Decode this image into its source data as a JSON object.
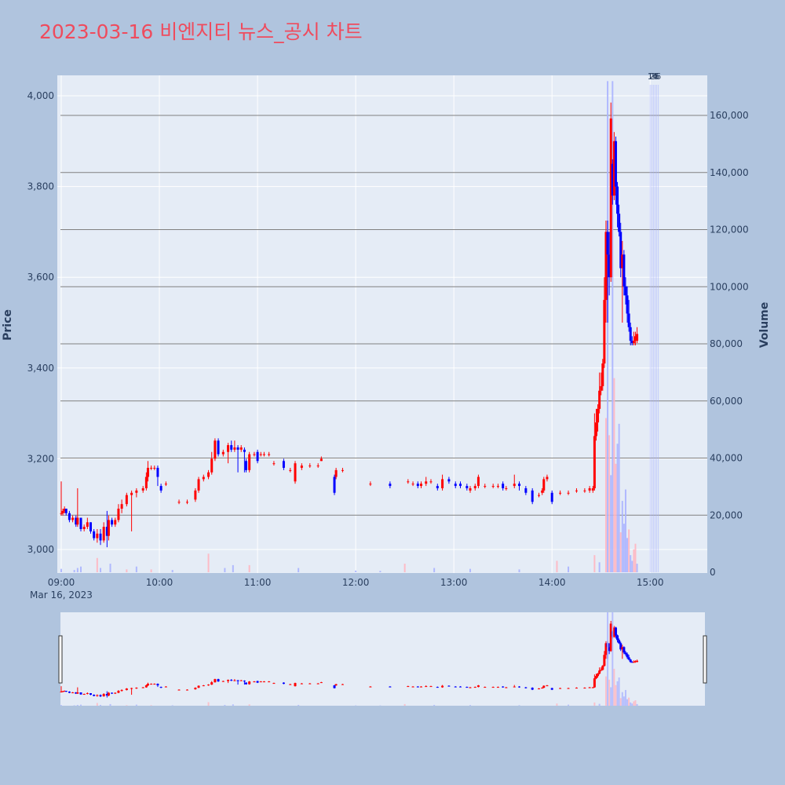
{
  "title": "2023-03-16 비엔지티 뉴스_공시 차트",
  "chart_data": {
    "type": "candlestick",
    "x_tick_labels": [
      "09:00",
      "10:00",
      "11:00",
      "12:00",
      "13:00",
      "14:00",
      "15:00"
    ],
    "x_date_label": "Mar 16, 2023",
    "x_range_minutes": [
      0,
      393
    ],
    "y_price": {
      "label": "Price",
      "range": [
        2950,
        4045
      ],
      "ticks": [
        3000,
        3200,
        3400,
        3600,
        3800,
        4000
      ],
      "tick_labels": [
        "3,000",
        "3,200",
        "3,400",
        "3,600",
        "3,800",
        "4,000"
      ]
    },
    "y_volume": {
      "label": "Volume",
      "range": [
        0,
        172000
      ],
      "ticks": [
        0,
        20000,
        40000,
        60000,
        80000,
        100000,
        120000,
        140000,
        160000
      ],
      "tick_labels": [
        "0",
        "20,000",
        "40,000",
        "60,000",
        "80,000",
        "100,000",
        "120,000",
        "140,000",
        "160,000"
      ]
    },
    "annotations": [
      "1",
      "2",
      "3",
      "4",
      "5",
      "6"
    ],
    "annotation_minutes": [
      360,
      361,
      362,
      363,
      364,
      365
    ],
    "colors": {
      "up": "#ff0000",
      "down": "#0000ff",
      "up_volume": "#ffb6c1",
      "down_volume": "#aab4ff"
    },
    "candles": [
      [
        0,
        3080,
        3150,
        3075,
        3080
      ],
      [
        1,
        3080,
        3090,
        3075,
        3085
      ],
      [
        2,
        3085,
        3095,
        3080,
        3090
      ],
      [
        3,
        3090,
        3090,
        3075,
        3080
      ],
      [
        5,
        3080,
        3085,
        3060,
        3065
      ],
      [
        7,
        3065,
        3075,
        3060,
        3070
      ],
      [
        9,
        3070,
        3075,
        3050,
        3055
      ],
      [
        10,
        3055,
        3135,
        3050,
        3070
      ],
      [
        12,
        3070,
        3070,
        3040,
        3045
      ],
      [
        14,
        3045,
        3055,
        3040,
        3050
      ],
      [
        16,
        3050,
        3070,
        3045,
        3060
      ],
      [
        18,
        3060,
        3060,
        3035,
        3040
      ],
      [
        20,
        3040,
        3045,
        3020,
        3025
      ],
      [
        22,
        3025,
        3045,
        3015,
        3035
      ],
      [
        24,
        3035,
        3045,
        3010,
        3020
      ],
      [
        26,
        3020,
        3060,
        3015,
        3050
      ],
      [
        28,
        3050,
        3085,
        3005,
        3030
      ],
      [
        29,
        3030,
        3075,
        3020,
        3065
      ],
      [
        31,
        3065,
        3070,
        3050,
        3055
      ],
      [
        33,
        3055,
        3070,
        3050,
        3065
      ],
      [
        35,
        3065,
        3100,
        3060,
        3090
      ],
      [
        37,
        3090,
        3110,
        3080,
        3100
      ],
      [
        40,
        3100,
        3125,
        3095,
        3120
      ],
      [
        43,
        3120,
        3130,
        3040,
        3125
      ],
      [
        46,
        3125,
        3135,
        3115,
        3130
      ],
      [
        50,
        3130,
        3140,
        3125,
        3135
      ],
      [
        52,
        3135,
        3170,
        3130,
        3160
      ],
      [
        53,
        3160,
        3195,
        3150,
        3180
      ],
      [
        55,
        3180,
        3185,
        3175,
        3180
      ],
      [
        57,
        3180,
        3185,
        3175,
        3180
      ],
      [
        59,
        3180,
        3185,
        3140,
        3160
      ],
      [
        61,
        3140,
        3145,
        3125,
        3130
      ],
      [
        64,
        3145,
        3150,
        3140,
        3145
      ],
      [
        72,
        3105,
        3110,
        3100,
        3105
      ],
      [
        77,
        3105,
        3110,
        3100,
        3105
      ],
      [
        82,
        3110,
        3135,
        3105,
        3130
      ],
      [
        84,
        3130,
        3160,
        3125,
        3155
      ],
      [
        87,
        3155,
        3165,
        3150,
        3160
      ],
      [
        90,
        3160,
        3175,
        3155,
        3170
      ],
      [
        92,
        3170,
        3215,
        3165,
        3200
      ],
      [
        94,
        3200,
        3245,
        3195,
        3240
      ],
      [
        96,
        3240,
        3245,
        3205,
        3210
      ],
      [
        99,
        3210,
        3220,
        3205,
        3215
      ],
      [
        102,
        3215,
        3235,
        3190,
        3230
      ],
      [
        104,
        3230,
        3240,
        3215,
        3220
      ],
      [
        106,
        3220,
        3240,
        3215,
        3225
      ],
      [
        108,
        3225,
        3230,
        3170,
        3220
      ],
      [
        110,
        3220,
        3230,
        3215,
        3225
      ],
      [
        112,
        3220,
        3225,
        3170,
        3215
      ],
      [
        113,
        3195,
        3200,
        3170,
        3175
      ],
      [
        115,
        3175,
        3215,
        3170,
        3210
      ],
      [
        118,
        3210,
        3215,
        3205,
        3210
      ],
      [
        120,
        3215,
        3220,
        3190,
        3195
      ],
      [
        122,
        3210,
        3215,
        3205,
        3210
      ],
      [
        124,
        3210,
        3215,
        3205,
        3210
      ],
      [
        127,
        3210,
        3215,
        3205,
        3210
      ],
      [
        130,
        3190,
        3195,
        3185,
        3190
      ],
      [
        136,
        3195,
        3200,
        3175,
        3180
      ],
      [
        140,
        3175,
        3180,
        3170,
        3175
      ],
      [
        143,
        3150,
        3195,
        3145,
        3190
      ],
      [
        147,
        3180,
        3190,
        3175,
        3185
      ],
      [
        152,
        3185,
        3190,
        3180,
        3185
      ],
      [
        157,
        3185,
        3190,
        3180,
        3185
      ],
      [
        159,
        3195,
        3205,
        3195,
        3200
      ],
      [
        167,
        3160,
        3165,
        3120,
        3125
      ],
      [
        168,
        3160,
        3180,
        3155,
        3175
      ],
      [
        172,
        3175,
        3180,
        3170,
        3175
      ],
      [
        189,
        3145,
        3150,
        3140,
        3145
      ],
      [
        201,
        3145,
        3150,
        3135,
        3140
      ],
      [
        212,
        3150,
        3155,
        3145,
        3150
      ],
      [
        215,
        3145,
        3150,
        3140,
        3145
      ],
      [
        218,
        3145,
        3150,
        3135,
        3140
      ],
      [
        220,
        3140,
        3150,
        3135,
        3145
      ],
      [
        223,
        3145,
        3160,
        3140,
        3150
      ],
      [
        226,
        3150,
        3155,
        3145,
        3150
      ],
      [
        230,
        3140,
        3145,
        3130,
        3135
      ],
      [
        233,
        3135,
        3165,
        3130,
        3155
      ],
      [
        237,
        3155,
        3160,
        3145,
        3150
      ],
      [
        241,
        3145,
        3150,
        3135,
        3140
      ],
      [
        244,
        3145,
        3150,
        3135,
        3140
      ],
      [
        248,
        3140,
        3145,
        3130,
        3135
      ],
      [
        250,
        3130,
        3140,
        3125,
        3135
      ],
      [
        253,
        3135,
        3145,
        3130,
        3140
      ],
      [
        255,
        3140,
        3165,
        3135,
        3160
      ],
      [
        259,
        3140,
        3145,
        3135,
        3140
      ],
      [
        264,
        3140,
        3145,
        3135,
        3140
      ],
      [
        267,
        3140,
        3145,
        3135,
        3140
      ],
      [
        270,
        3145,
        3150,
        3130,
        3135
      ],
      [
        272,
        3135,
        3140,
        3130,
        3135
      ],
      [
        277,
        3140,
        3165,
        3135,
        3145
      ],
      [
        280,
        3145,
        3150,
        3130,
        3140
      ],
      [
        284,
        3135,
        3140,
        3120,
        3125
      ],
      [
        288,
        3130,
        3135,
        3100,
        3105
      ],
      [
        292,
        3120,
        3125,
        3115,
        3120
      ],
      [
        294,
        3125,
        3135,
        3120,
        3130
      ],
      [
        295,
        3130,
        3160,
        3125,
        3155
      ],
      [
        297,
        3155,
        3165,
        3150,
        3160
      ],
      [
        300,
        3125,
        3130,
        3100,
        3105
      ],
      [
        305,
        3125,
        3130,
        3120,
        3125
      ],
      [
        310,
        3125,
        3130,
        3120,
        3125
      ],
      [
        315,
        3130,
        3135,
        3125,
        3130
      ],
      [
        320,
        3130,
        3135,
        3125,
        3130
      ],
      [
        323,
        3130,
        3140,
        3125,
        3135
      ],
      [
        325,
        3130,
        3140,
        3125,
        3135
      ],
      [
        326,
        3135,
        3300,
        3130,
        3250
      ],
      [
        327,
        3250,
        3310,
        3240,
        3280
      ],
      [
        328,
        3280,
        3320,
        3260,
        3310
      ],
      [
        329,
        3310,
        3390,
        3300,
        3350
      ],
      [
        330,
        3350,
        3390,
        3340,
        3360
      ],
      [
        331,
        3360,
        3420,
        3350,
        3410
      ],
      [
        332,
        3410,
        3600,
        3400,
        3550
      ],
      [
        333,
        3550,
        3725,
        3500,
        3700
      ],
      [
        334,
        3700,
        3725,
        3500,
        3650
      ],
      [
        335,
        3650,
        3700,
        3560,
        3600
      ],
      [
        336,
        3600,
        3985,
        3590,
        3950
      ],
      [
        337,
        3850,
        3860,
        3760,
        3780
      ],
      [
        338,
        3780,
        3920,
        3770,
        3900
      ],
      [
        339,
        3900,
        3910,
        3760,
        3800
      ],
      [
        340,
        3800,
        3810,
        3710,
        3740
      ],
      [
        341,
        3740,
        3760,
        3690,
        3700
      ],
      [
        342,
        3700,
        3720,
        3600,
        3620
      ],
      [
        343,
        3620,
        3680,
        3500,
        3650
      ],
      [
        344,
        3650,
        3660,
        3560,
        3580
      ],
      [
        345,
        3580,
        3600,
        3540,
        3560
      ],
      [
        346,
        3560,
        3580,
        3500,
        3520
      ],
      [
        347,
        3520,
        3550,
        3480,
        3490
      ],
      [
        348,
        3490,
        3500,
        3450,
        3460
      ],
      [
        349,
        3460,
        3470,
        3450,
        3455
      ],
      [
        350,
        3455,
        3480,
        3450,
        3460
      ],
      [
        351,
        3460,
        3480,
        3450,
        3470
      ],
      [
        352,
        3460,
        3490,
        3455,
        3475
      ]
    ],
    "volumes": [
      [
        0,
        1200,
        "down"
      ],
      [
        8,
        800,
        "down"
      ],
      [
        10,
        1500,
        "down"
      ],
      [
        12,
        2000,
        "down"
      ],
      [
        22,
        5000,
        "up"
      ],
      [
        24,
        1500,
        "down"
      ],
      [
        30,
        3000,
        "down"
      ],
      [
        40,
        1000,
        "up"
      ],
      [
        46,
        2000,
        "down"
      ],
      [
        55,
        1000,
        "up"
      ],
      [
        68,
        800,
        "down"
      ],
      [
        90,
        6500,
        "up"
      ],
      [
        100,
        1500,
        "down"
      ],
      [
        105,
        2500,
        "down"
      ],
      [
        115,
        2500,
        "up"
      ],
      [
        145,
        1500,
        "down"
      ],
      [
        180,
        600,
        "down"
      ],
      [
        195,
        500,
        "down"
      ],
      [
        210,
        3000,
        "up"
      ],
      [
        228,
        1500,
        "down"
      ],
      [
        250,
        1200,
        "down"
      ],
      [
        280,
        1000,
        "down"
      ],
      [
        303,
        4000,
        "up"
      ],
      [
        310,
        2000,
        "down"
      ],
      [
        326,
        6000,
        "up"
      ],
      [
        329,
        3500,
        "down"
      ],
      [
        333,
        54000,
        "up"
      ],
      [
        334,
        172000,
        "down"
      ],
      [
        335,
        48000,
        "up"
      ],
      [
        336,
        34000,
        "down"
      ],
      [
        337,
        172000,
        "down"
      ],
      [
        338,
        68000,
        "up"
      ],
      [
        339,
        38000,
        "up"
      ],
      [
        340,
        45000,
        "down"
      ],
      [
        341,
        52000,
        "down"
      ],
      [
        342,
        14000,
        "up"
      ],
      [
        343,
        25000,
        "down"
      ],
      [
        344,
        17000,
        "down"
      ],
      [
        345,
        29000,
        "down"
      ],
      [
        346,
        12000,
        "down"
      ],
      [
        347,
        15000,
        "up"
      ],
      [
        348,
        6000,
        "down"
      ],
      [
        349,
        4000,
        "down"
      ],
      [
        350,
        8000,
        "up"
      ],
      [
        351,
        10000,
        "up"
      ],
      [
        352,
        3000,
        "down"
      ]
    ]
  }
}
